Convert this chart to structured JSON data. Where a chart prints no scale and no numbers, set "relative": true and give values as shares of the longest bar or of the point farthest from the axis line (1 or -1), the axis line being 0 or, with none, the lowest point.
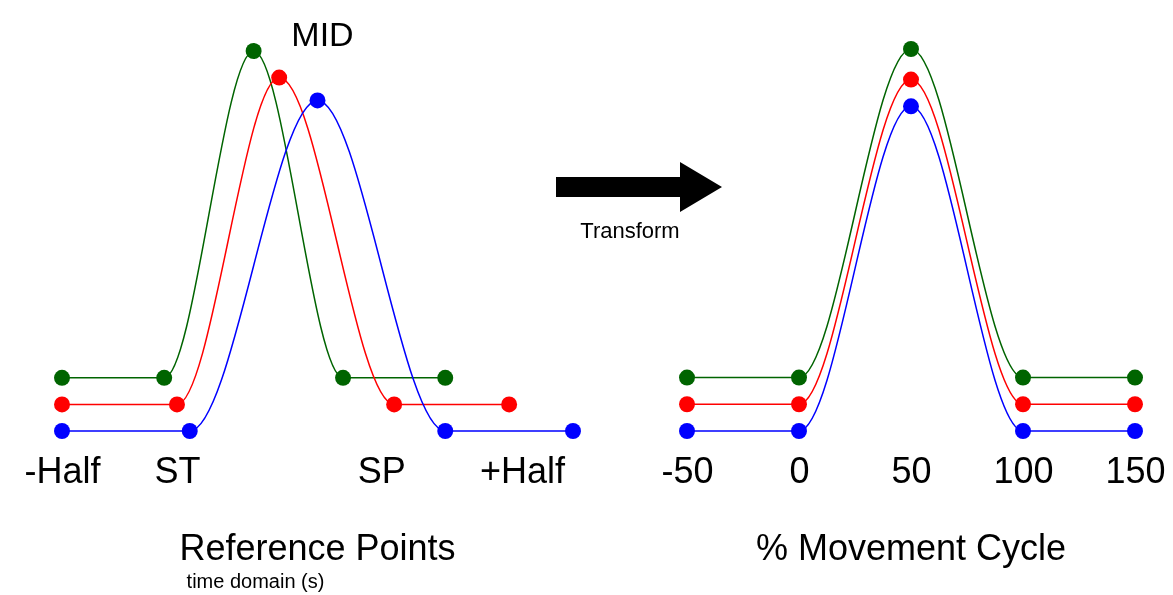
{
  "chart_data": [
    {
      "type": "line",
      "relative": true,
      "xlabel": "Reference Points",
      "marker": "circle",
      "line_style": "solid",
      "categories": [
        "-Half",
        null,
        null,
        null,
        null,
        null,
        null,
        null,
        null,
        "ST",
        null,
        null,
        null,
        null,
        null,
        null,
        null,
        null,
        null,
        null,
        null,
        null,
        null,
        null,
        null,
        "SP",
        null,
        null,
        null,
        null,
        null,
        null,
        null,
        null,
        null,
        null,
        "+Half",
        null,
        null,
        null,
        null
      ],
      "annotations": [
        "MID",
        "time domain (s)",
        "Transform"
      ],
      "series": [
        {
          "color": "#006400",
          "values": [
            0.14,
            null,
            null,
            null,
            null,
            null,
            null,
            null,
            0.14,
            null,
            null,
            null,
            null,
            null,
            null,
            1,
            null,
            null,
            null,
            null,
            null,
            null,
            0.14,
            null,
            null,
            null,
            null,
            null,
            null,
            null,
            0.14,
            null,
            null,
            null,
            null,
            null,
            null,
            null,
            null,
            null,
            null
          ]
        },
        {
          "color": "#ff0000",
          "values": [
            0.07,
            null,
            null,
            null,
            null,
            null,
            null,
            null,
            null,
            0.07,
            null,
            null,
            null,
            null,
            null,
            null,
            null,
            0.93,
            null,
            null,
            null,
            null,
            null,
            null,
            null,
            null,
            0.07,
            null,
            null,
            null,
            null,
            null,
            null,
            null,
            null,
            0.07,
            null,
            null,
            null,
            null,
            null
          ]
        },
        {
          "color": "#0000ff",
          "values": [
            0,
            null,
            null,
            null,
            null,
            null,
            null,
            null,
            null,
            null,
            0,
            null,
            null,
            null,
            null,
            null,
            null,
            null,
            null,
            null,
            0.87,
            null,
            null,
            null,
            null,
            null,
            null,
            null,
            null,
            null,
            0,
            null,
            null,
            null,
            null,
            null,
            null,
            null,
            null,
            null,
            0
          ]
        }
      ]
    },
    {
      "type": "line",
      "relative": true,
      "xlabel": "% Movement Cycle",
      "marker": "circle",
      "line_style": "solid",
      "xlim": [
        -50,
        150
      ],
      "xticks": [
        -50,
        0,
        50,
        100,
        150
      ],
      "series": [
        {
          "color": "#006400",
          "x": [
            -50,
            0,
            50,
            100,
            150
          ],
          "values": [
            0.14,
            0.14,
            1,
            0.14,
            0.14
          ]
        },
        {
          "color": "#ff0000",
          "x": [
            -50,
            0,
            50,
            100,
            150
          ],
          "values": [
            0.07,
            0.07,
            0.92,
            0.07,
            0.07
          ]
        },
        {
          "color": "#0000ff",
          "x": [
            -50,
            0,
            50,
            100,
            150
          ],
          "values": [
            0,
            0,
            0.85,
            0,
            0
          ]
        }
      ]
    }
  ]
}
